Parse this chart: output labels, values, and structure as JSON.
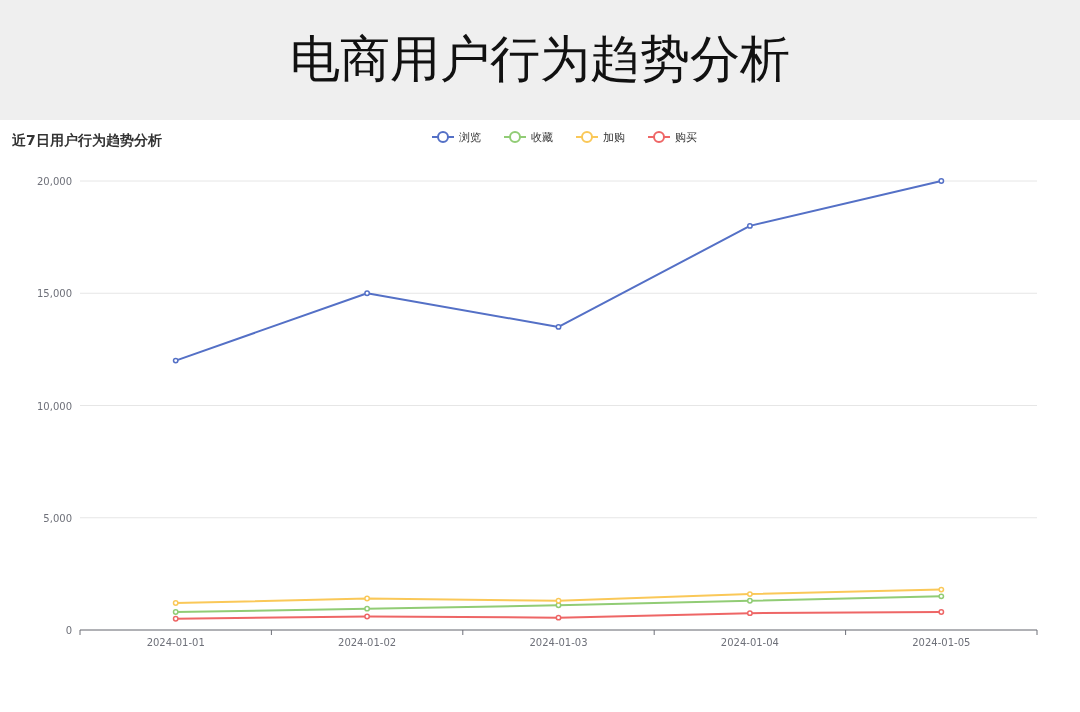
{
  "chart_data": {
    "type": "line",
    "title": "电商用户行为趋势分析",
    "subtitle": "近7日用户行为趋势分析",
    "categories": [
      "2024-01-01",
      "2024-01-02",
      "2024-01-03",
      "2024-01-04",
      "2024-01-05"
    ],
    "series": [
      {
        "name": "浏览",
        "color": "#5470c6",
        "values": [
          12000,
          15000,
          13500,
          18000,
          20000
        ]
      },
      {
        "name": "收藏",
        "color": "#91cc75",
        "values": [
          800,
          950,
          1100,
          1300,
          1500
        ]
      },
      {
        "name": "加购",
        "color": "#fac858",
        "values": [
          1200,
          1400,
          1300,
          1600,
          1800
        ]
      },
      {
        "name": "购买",
        "color": "#ee6666",
        "values": [
          500,
          600,
          550,
          750,
          800
        ]
      }
    ],
    "ylim": [
      0,
      20000
    ],
    "yticks": [
      0,
      {
        "value": 5000,
        "label": "5,000"
      },
      {
        "value": 10000,
        "label": "10,000"
      },
      {
        "value": 15000,
        "label": "15,000"
      },
      {
        "value": 20000,
        "label": "20,000"
      }
    ],
    "grid": "y",
    "legend": "top",
    "marker": "circle",
    "line_style": "solid"
  }
}
